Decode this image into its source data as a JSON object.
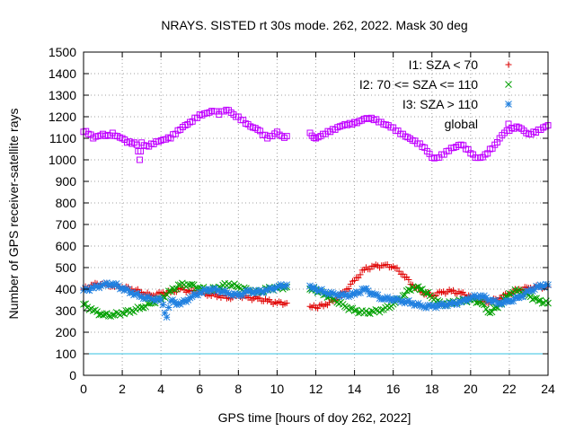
{
  "chart_data": {
    "type": "scatter",
    "title": "NRAYS. SISTED rt 30s mode. 262, 2022. Mask 30 deg",
    "xlabel": "GPS time [hours of doy 262, 2022]",
    "ylabel": "Number of GPS receiver-satellite rays",
    "xlim": [
      0,
      24
    ],
    "ylim": [
      0,
      1500
    ],
    "xticks": [
      0,
      2,
      4,
      6,
      8,
      10,
      12,
      14,
      16,
      18,
      20,
      22,
      24
    ],
    "yticks": [
      0,
      100,
      200,
      300,
      400,
      500,
      600,
      700,
      800,
      900,
      1000,
      1100,
      1200,
      1300,
      1400,
      1500
    ],
    "grid": true,
    "legend_position": "top-right",
    "reference_line": {
      "y": 100,
      "color": "#33c0e0"
    },
    "series": [
      {
        "name": "I1: SZA < 70",
        "marker": "+",
        "color": "#e00000",
        "x": [
          0.0,
          0.5,
          1.0,
          1.5,
          2.0,
          2.5,
          3.0,
          3.5,
          4.0,
          4.5,
          5.0,
          5.5,
          6.0,
          6.5,
          7.0,
          7.5,
          8.0,
          8.5,
          9.0,
          9.5,
          10.0,
          10.5,
          11.7,
          12.0,
          12.5,
          13.0,
          13.5,
          14.0,
          14.5,
          15.0,
          15.5,
          16.0,
          16.5,
          17.0,
          17.5,
          18.0,
          18.5,
          19.0,
          19.5,
          20.0,
          20.5,
          21.0,
          21.5,
          22.0,
          22.5,
          23.0,
          23.5,
          24.0
        ],
        "y": [
          400,
          420,
          425,
          415,
          410,
          400,
          385,
          370,
          380,
          385,
          400,
          390,
          385,
          375,
          370,
          360,
          370,
          360,
          355,
          345,
          335,
          335,
          320,
          315,
          330,
          350,
          390,
          440,
          490,
          505,
          510,
          505,
          470,
          420,
          385,
          370,
          385,
          390,
          380,
          365,
          345,
          340,
          360,
          380,
          400,
          405,
          410,
          410
        ]
      },
      {
        "name": "I2: 70 <= SZA <= 110",
        "marker": "x",
        "color": "#00a000",
        "x": [
          0.0,
          0.5,
          1.0,
          1.5,
          2.0,
          2.5,
          3.0,
          3.5,
          4.0,
          4.5,
          5.0,
          5.5,
          6.0,
          6.5,
          7.0,
          7.5,
          8.0,
          8.5,
          9.0,
          9.5,
          10.0,
          10.5,
          11.7,
          12.0,
          12.5,
          13.0,
          13.5,
          14.0,
          14.5,
          15.0,
          15.5,
          16.0,
          16.5,
          17.0,
          17.5,
          18.0,
          18.5,
          19.0,
          19.5,
          20.0,
          20.5,
          21.0,
          21.5,
          22.0,
          22.5,
          23.0,
          23.5,
          24.0
        ],
        "y": [
          330,
          300,
          280,
          280,
          290,
          300,
          315,
          335,
          355,
          390,
          420,
          420,
          405,
          395,
          410,
          425,
          410,
          395,
          385,
          400,
          405,
          410,
          400,
          395,
          375,
          350,
          320,
          300,
          290,
          295,
          305,
          330,
          370,
          410,
          400,
          360,
          330,
          335,
          345,
          350,
          340,
          290,
          330,
          380,
          395,
          370,
          345,
          335
        ]
      },
      {
        "name": "I3: SZA > 110",
        "marker": "*",
        "color": "#2080e0",
        "x": [
          0.0,
          0.5,
          1.0,
          1.5,
          2.0,
          2.5,
          3.0,
          3.5,
          4.0,
          4.3,
          4.5,
          5.0,
          5.5,
          6.0,
          6.5,
          7.0,
          7.5,
          8.0,
          8.5,
          9.0,
          9.5,
          10.0,
          10.5,
          11.7,
          12.0,
          12.5,
          13.0,
          13.5,
          14.0,
          14.5,
          15.0,
          15.5,
          16.0,
          16.5,
          17.0,
          17.5,
          18.0,
          18.5,
          19.0,
          19.5,
          20.0,
          20.5,
          21.0,
          21.5,
          22.0,
          22.5,
          23.0,
          23.5,
          24.0
        ],
        "y": [
          395,
          405,
          420,
          425,
          405,
          385,
          365,
          355,
          350,
          270,
          345,
          330,
          360,
          385,
          400,
          395,
          380,
          370,
          390,
          385,
          395,
          410,
          420,
          415,
          400,
          385,
          375,
          370,
          375,
          400,
          375,
          355,
          355,
          345,
          335,
          320,
          320,
          325,
          330,
          340,
          360,
          370,
          350,
          335,
          345,
          360,
          390,
          410,
          420
        ]
      },
      {
        "name": "global",
        "marker": "square",
        "color": "#c000ff",
        "x": [
          0.0,
          0.25,
          0.5,
          0.75,
          1.0,
          1.25,
          1.5,
          1.75,
          2.0,
          2.25,
          2.5,
          2.75,
          2.9,
          3.0,
          3.25,
          3.5,
          3.75,
          4.0,
          4.25,
          4.5,
          4.75,
          5.0,
          5.25,
          5.5,
          5.75,
          6.0,
          6.25,
          6.5,
          6.75,
          7.0,
          7.25,
          7.5,
          7.75,
          8.0,
          8.25,
          8.5,
          8.75,
          9.0,
          9.25,
          9.5,
          9.75,
          10.0,
          10.25,
          10.5,
          11.7,
          12.0,
          12.25,
          12.5,
          12.75,
          13.0,
          13.25,
          13.5,
          13.75,
          14.0,
          14.25,
          14.5,
          14.75,
          15.0,
          15.25,
          15.5,
          15.75,
          16.0,
          16.25,
          16.5,
          16.75,
          17.0,
          17.25,
          17.5,
          17.75,
          18.0,
          18.25,
          18.5,
          18.75,
          19.0,
          19.25,
          19.5,
          19.75,
          20.0,
          20.25,
          20.5,
          20.75,
          21.0,
          21.25,
          21.5,
          21.75,
          22.0,
          22.25,
          22.5,
          22.75,
          23.0,
          23.25,
          23.5,
          23.75,
          24.0
        ],
        "y": [
          1130,
          1120,
          1100,
          1110,
          1120,
          1115,
          1125,
          1110,
          1100,
          1080,
          1075,
          1070,
          1000,
          1080,
          1065,
          1075,
          1085,
          1090,
          1095,
          1100,
          1120,
          1140,
          1160,
          1175,
          1195,
          1210,
          1215,
          1220,
          1225,
          1210,
          1225,
          1230,
          1210,
          1200,
          1185,
          1165,
          1150,
          1140,
          1115,
          1100,
          1110,
          1130,
          1110,
          1110,
          1125,
          1100,
          1110,
          1120,
          1130,
          1140,
          1155,
          1165,
          1170,
          1175,
          1180,
          1190,
          1190,
          1185,
          1175,
          1165,
          1160,
          1150,
          1135,
          1120,
          1105,
          1090,
          1075,
          1060,
          1040,
          1010,
          1010,
          1025,
          1040,
          1055,
          1060,
          1070,
          1050,
          1030,
          1010,
          1010,
          1025,
          1050,
          1070,
          1100,
          1125,
          1135,
          1145,
          1150,
          1135,
          1120,
          1130,
          1140,
          1150,
          1160
        ]
      }
    ]
  }
}
